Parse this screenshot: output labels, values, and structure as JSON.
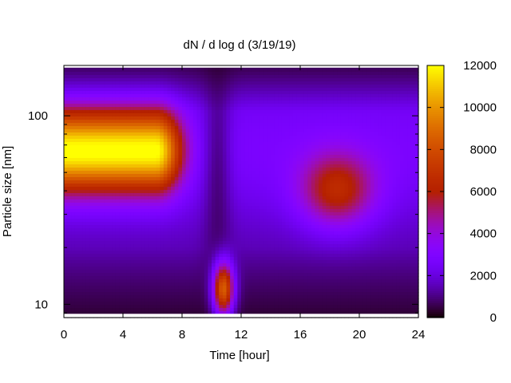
{
  "chart_data": {
    "type": "heatmap",
    "title": "dN / d log d (3/19/19)",
    "xlabel": "Time [hour]",
    "ylabel": "Particle size [nm]",
    "xlim": [
      0,
      24
    ],
    "ylim": [
      8.5,
      185
    ],
    "y_scale": "log",
    "x_ticks": [
      0,
      4,
      8,
      12,
      16,
      20,
      24
    ],
    "y_ticks": [
      10,
      100
    ],
    "colorbar": {
      "range": [
        0,
        12000
      ],
      "ticks": [
        0,
        2000,
        4000,
        6000,
        8000,
        10000,
        12000
      ],
      "colormap": "gnuplot (black-purple-red-orange-yellow)"
    },
    "grid": false,
    "features": [
      {
        "desc": "broad accumulation mode",
        "time_start": 0,
        "time_end": 7.5,
        "diameter_nm": 65,
        "peak_value": 11000
      },
      {
        "desc": "nucleation burst",
        "time": 10.8,
        "diameter_nm": 12,
        "peak_value": 8000
      },
      {
        "desc": "evening mode",
        "time": 18.5,
        "diameter_nm": 40,
        "peak_value": 6500
      }
    ]
  },
  "axis_labels": {
    "x_ticks": [
      "0",
      "4",
      "8",
      "12",
      "16",
      "20",
      "24"
    ],
    "y_ticks": [
      "10",
      "100"
    ],
    "cb_ticks": [
      "0",
      "2000",
      "4000",
      "6000",
      "8000",
      "10000",
      "12000"
    ]
  }
}
